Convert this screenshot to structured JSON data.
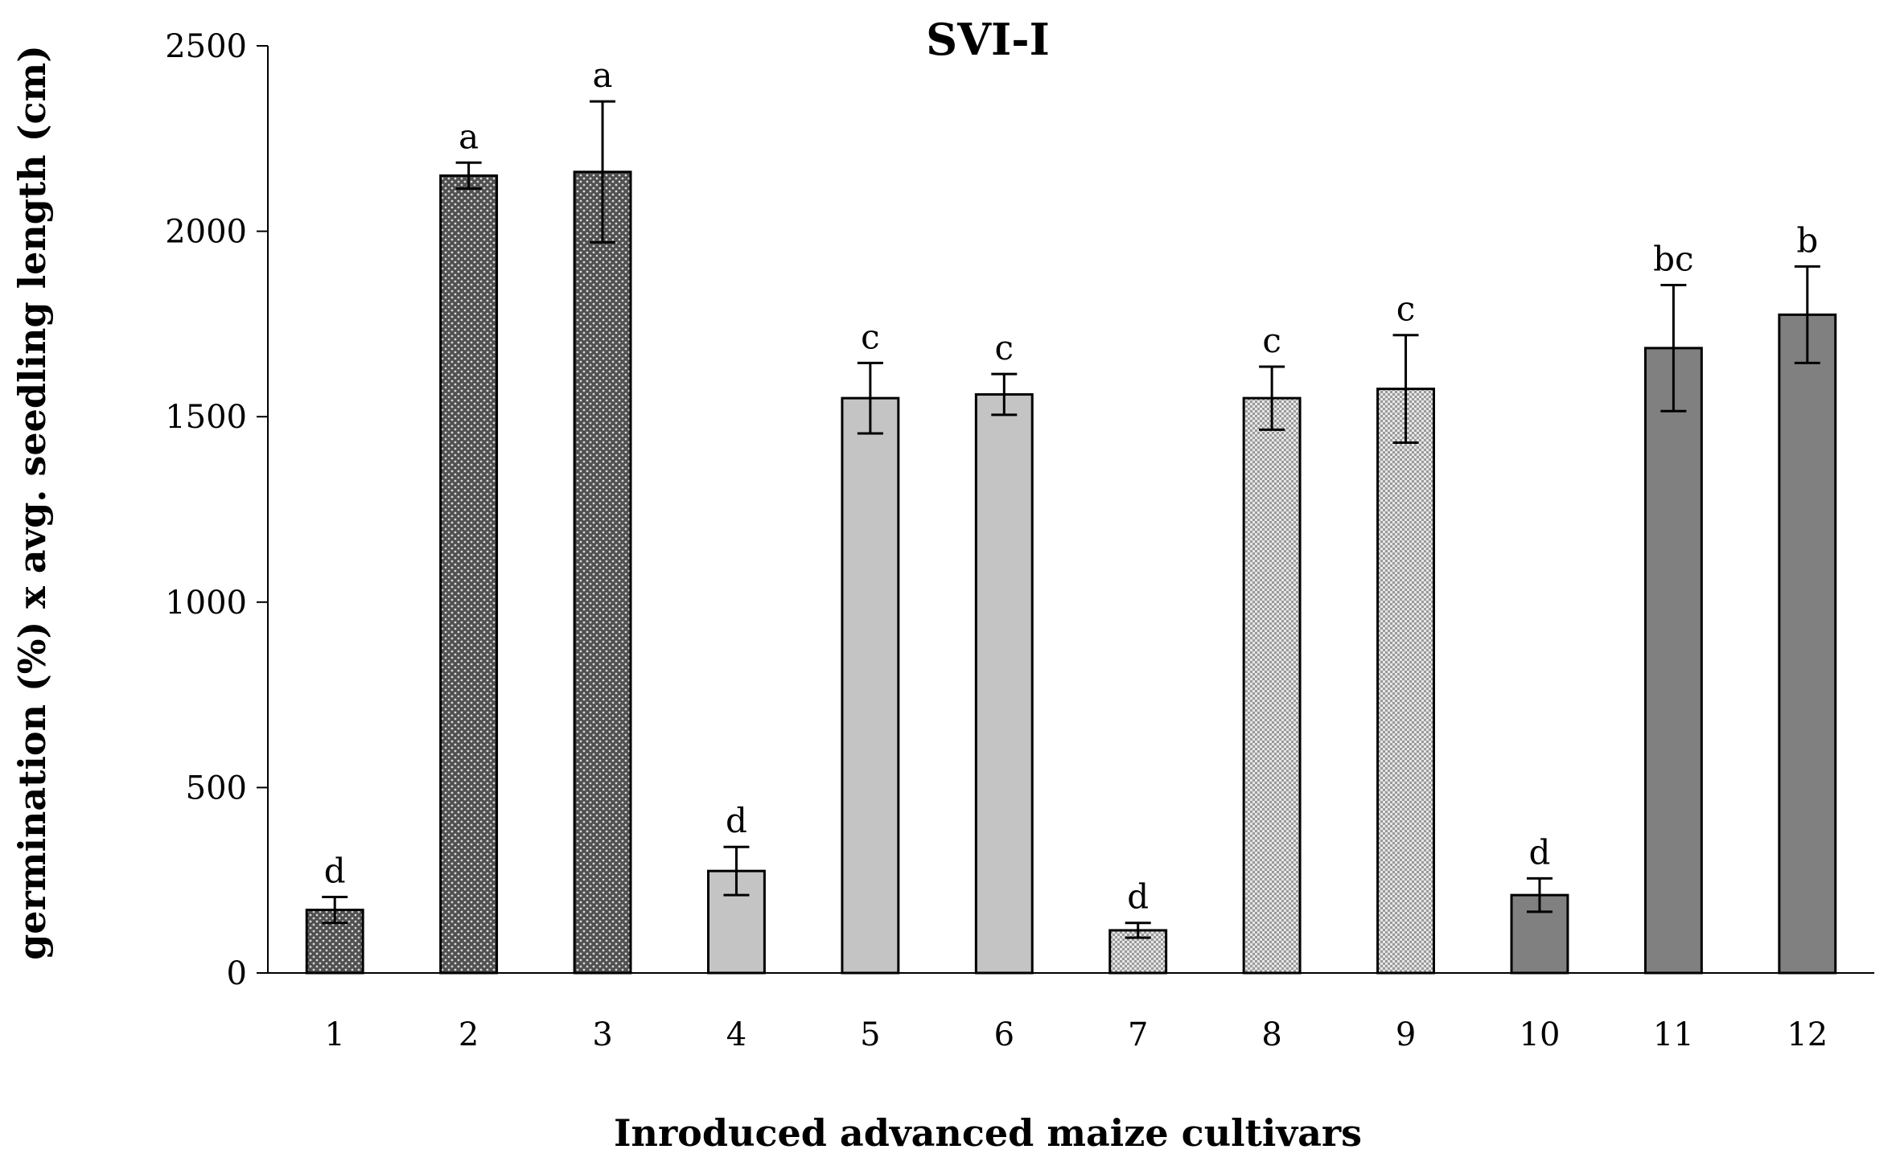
{
  "chart_data": {
    "type": "bar",
    "title": "SVI-I",
    "xlabel": "Inroduced advanced maize cultivars",
    "ylabel": "germination (%) x avg. seedling length (cm)",
    "ylim": [
      0,
      2500
    ],
    "yticks": [
      0,
      500,
      1000,
      1500,
      2000,
      2500
    ],
    "grid": false,
    "legend": "none",
    "categories": [
      "1",
      "2",
      "3",
      "4",
      "5",
      "6",
      "7",
      "8",
      "9",
      "10",
      "11",
      "12"
    ],
    "values": [
      170,
      2150,
      2160,
      275,
      1550,
      1560,
      115,
      1550,
      1575,
      210,
      1685,
      1775
    ],
    "errors": [
      35,
      35,
      190,
      65,
      95,
      55,
      20,
      85,
      145,
      45,
      170,
      130
    ],
    "significance_labels": [
      "d",
      "a",
      "a",
      "d",
      "c",
      "c",
      "d",
      "c",
      "c",
      "d",
      "bc",
      "b"
    ],
    "bar_colors": [
      "#555555",
      "#555555",
      "#555555",
      "#c4c4c4",
      "#c4c4c4",
      "#c4c4c4",
      "#c8c8c8",
      "#c8c8c8",
      "#c8c8c8",
      "#808080",
      "#808080",
      "#808080"
    ],
    "bar_patterns": [
      "dots-dark",
      "dots-dark",
      "dots-dark",
      "solid",
      "solid",
      "solid",
      "checker-light",
      "checker-light",
      "checker-light",
      "solid",
      "solid",
      "solid"
    ]
  }
}
